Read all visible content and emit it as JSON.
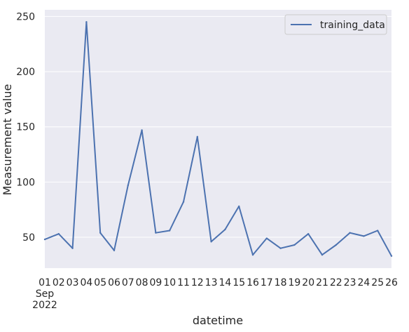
{
  "chart_data": {
    "type": "line",
    "title": "",
    "xlabel": "datetime",
    "ylabel": "Measurement value",
    "x_start_label": [
      "01",
      "Sep",
      "2022"
    ],
    "x_tick_labels": [
      "01",
      "02",
      "03",
      "04",
      "05",
      "06",
      "07",
      "08",
      "09",
      "10",
      "11",
      "12",
      "13",
      "14",
      "15",
      "16",
      "17",
      "18",
      "19",
      "20",
      "21",
      "22",
      "23",
      "24",
      "25",
      "26"
    ],
    "x": [
      "2022-09-01",
      "2022-09-02",
      "2022-09-03",
      "2022-09-04",
      "2022-09-05",
      "2022-09-06",
      "2022-09-07",
      "2022-09-08",
      "2022-09-09",
      "2022-09-10",
      "2022-09-11",
      "2022-09-12",
      "2022-09-13",
      "2022-09-14",
      "2022-09-15",
      "2022-09-16",
      "2022-09-17",
      "2022-09-18",
      "2022-09-19",
      "2022-09-20",
      "2022-09-21",
      "2022-09-22",
      "2022-09-23",
      "2022-09-24",
      "2022-09-25",
      "2022-09-26"
    ],
    "series": [
      {
        "name": "training_data",
        "color": "#4c72b0",
        "values": [
          48,
          53,
          40,
          245,
          54,
          38,
          97,
          147,
          54,
          56,
          82,
          141,
          46,
          57,
          78,
          34,
          49,
          40,
          43,
          53,
          34,
          43,
          54,
          51,
          56,
          33
        ]
      }
    ],
    "yticks": [
      50,
      100,
      150,
      200,
      250
    ],
    "ylim": [
      22,
      256
    ],
    "legend": "top-right",
    "grid": true,
    "background": "#eaeaf2"
  }
}
